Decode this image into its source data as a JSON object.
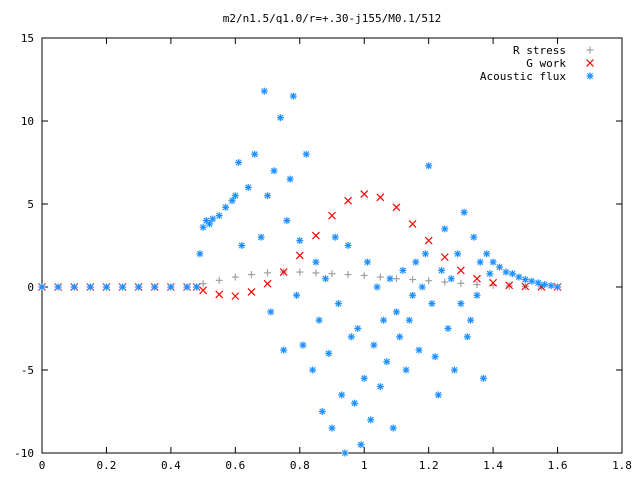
{
  "chart_data": {
    "type": "scatter",
    "title": "m2/n1.5/q1.0/r=+.30-j155/M0.1/512",
    "xlabel": "",
    "ylabel": "",
    "xlim": [
      0,
      1.8
    ],
    "ylim": [
      -10,
      15
    ],
    "x_ticks": [
      "0",
      "0.2",
      "0.4",
      "0.6",
      "0.8",
      "1",
      "1.2",
      "1.4",
      "1.6",
      "1.8"
    ],
    "y_ticks": [
      "15",
      "10",
      "5",
      "0",
      "-5",
      "-10"
    ],
    "grid": false,
    "legend_position": "top-right",
    "series": [
      {
        "name": "R stress",
        "marker": "plus",
        "color": "#a0a0a0",
        "x": [
          0.0,
          0.05,
          0.1,
          0.15,
          0.2,
          0.25,
          0.3,
          0.35,
          0.4,
          0.45,
          0.48,
          0.5,
          0.55,
          0.6,
          0.65,
          0.7,
          0.75,
          0.8,
          0.85,
          0.9,
          0.95,
          1.0,
          1.05,
          1.1,
          1.15,
          1.2,
          1.25,
          1.3,
          1.35,
          1.4,
          1.45,
          1.5,
          1.55,
          1.6
        ],
        "y": [
          0,
          0,
          0,
          0,
          0,
          0,
          0,
          0,
          0,
          0,
          0,
          0.2,
          0.4,
          0.6,
          0.75,
          0.85,
          0.9,
          0.9,
          0.85,
          0.8,
          0.75,
          0.7,
          0.6,
          0.5,
          0.45,
          0.38,
          0.3,
          0.22,
          0.15,
          0.1,
          0.06,
          0.03,
          0.01,
          0
        ]
      },
      {
        "name": "G work",
        "marker": "cross",
        "color": "#ff0000",
        "x": [
          0.0,
          0.05,
          0.1,
          0.15,
          0.2,
          0.25,
          0.3,
          0.35,
          0.4,
          0.45,
          0.48,
          0.5,
          0.55,
          0.6,
          0.65,
          0.7,
          0.75,
          0.8,
          0.85,
          0.9,
          0.95,
          1.0,
          1.05,
          1.1,
          1.15,
          1.2,
          1.25,
          1.3,
          1.35,
          1.4,
          1.45,
          1.5,
          1.55,
          1.6
        ],
        "y": [
          0,
          0,
          0,
          0,
          0,
          0,
          0,
          0,
          0,
          0,
          0,
          -0.2,
          -0.45,
          -0.55,
          -0.3,
          0.2,
          0.9,
          1.9,
          3.1,
          4.3,
          5.2,
          5.6,
          5.4,
          4.8,
          3.8,
          2.8,
          1.8,
          1.0,
          0.5,
          0.25,
          0.1,
          0.03,
          0.01,
          0
        ]
      },
      {
        "name": "Acoustic flux",
        "marker": "star",
        "color": "#1e90ff",
        "x": [
          0.0,
          0.05,
          0.1,
          0.15,
          0.2,
          0.25,
          0.3,
          0.35,
          0.4,
          0.45,
          0.48,
          0.49,
          0.5,
          0.51,
          0.52,
          0.53,
          0.55,
          0.57,
          0.59,
          0.6,
          0.61,
          0.62,
          0.64,
          0.66,
          0.68,
          0.69,
          0.7,
          0.71,
          0.72,
          0.74,
          0.75,
          0.76,
          0.77,
          0.78,
          0.79,
          0.8,
          0.81,
          0.82,
          0.84,
          0.85,
          0.86,
          0.87,
          0.88,
          0.89,
          0.9,
          0.91,
          0.92,
          0.93,
          0.94,
          0.95,
          0.96,
          0.97,
          0.98,
          0.99,
          1.0,
          1.01,
          1.02,
          1.03,
          1.04,
          1.05,
          1.06,
          1.07,
          1.08,
          1.09,
          1.1,
          1.11,
          1.12,
          1.13,
          1.14,
          1.15,
          1.16,
          1.17,
          1.18,
          1.19,
          1.2,
          1.21,
          1.22,
          1.23,
          1.24,
          1.25,
          1.26,
          1.27,
          1.28,
          1.29,
          1.3,
          1.31,
          1.32,
          1.33,
          1.34,
          1.35,
          1.36,
          1.37,
          1.38,
          1.39,
          1.4,
          1.42,
          1.44,
          1.46,
          1.48,
          1.5,
          1.52,
          1.54,
          1.56,
          1.58,
          1.6
        ],
        "y": [
          0,
          0,
          0,
          0,
          0,
          0,
          0,
          0,
          0,
          0,
          0,
          2.0,
          3.6,
          4.0,
          3.8,
          4.1,
          4.3,
          4.8,
          5.2,
          5.5,
          7.5,
          2.5,
          6.0,
          8.0,
          3.0,
          11.8,
          5.5,
          -1.5,
          7.0,
          10.2,
          -3.8,
          4.0,
          6.5,
          11.5,
          -0.5,
          2.8,
          -3.5,
          8.0,
          -5.0,
          1.5,
          -2.0,
          -7.5,
          0.5,
          -4.0,
          -8.5,
          3.0,
          -1.0,
          -6.5,
          -10.0,
          2.5,
          -3.0,
          -7.0,
          -2.5,
          -9.5,
          -5.5,
          1.5,
          -8.0,
          -3.5,
          0.0,
          -6.0,
          -2.0,
          -4.5,
          0.5,
          -8.5,
          -1.5,
          -3.0,
          1.0,
          -5.0,
          -2.0,
          -0.5,
          1.5,
          -3.8,
          0.0,
          2.0,
          7.3,
          -1.0,
          -4.2,
          -6.5,
          1.0,
          3.5,
          -2.5,
          0.5,
          -5.0,
          2.0,
          -1.0,
          4.5,
          -3.0,
          -2.0,
          3.0,
          -0.5,
          1.5,
          -5.5,
          2.0,
          0.8,
          1.5,
          1.2,
          0.9,
          0.8,
          0.6,
          0.45,
          0.35,
          0.25,
          0.15,
          0.08,
          0.0
        ]
      }
    ]
  }
}
